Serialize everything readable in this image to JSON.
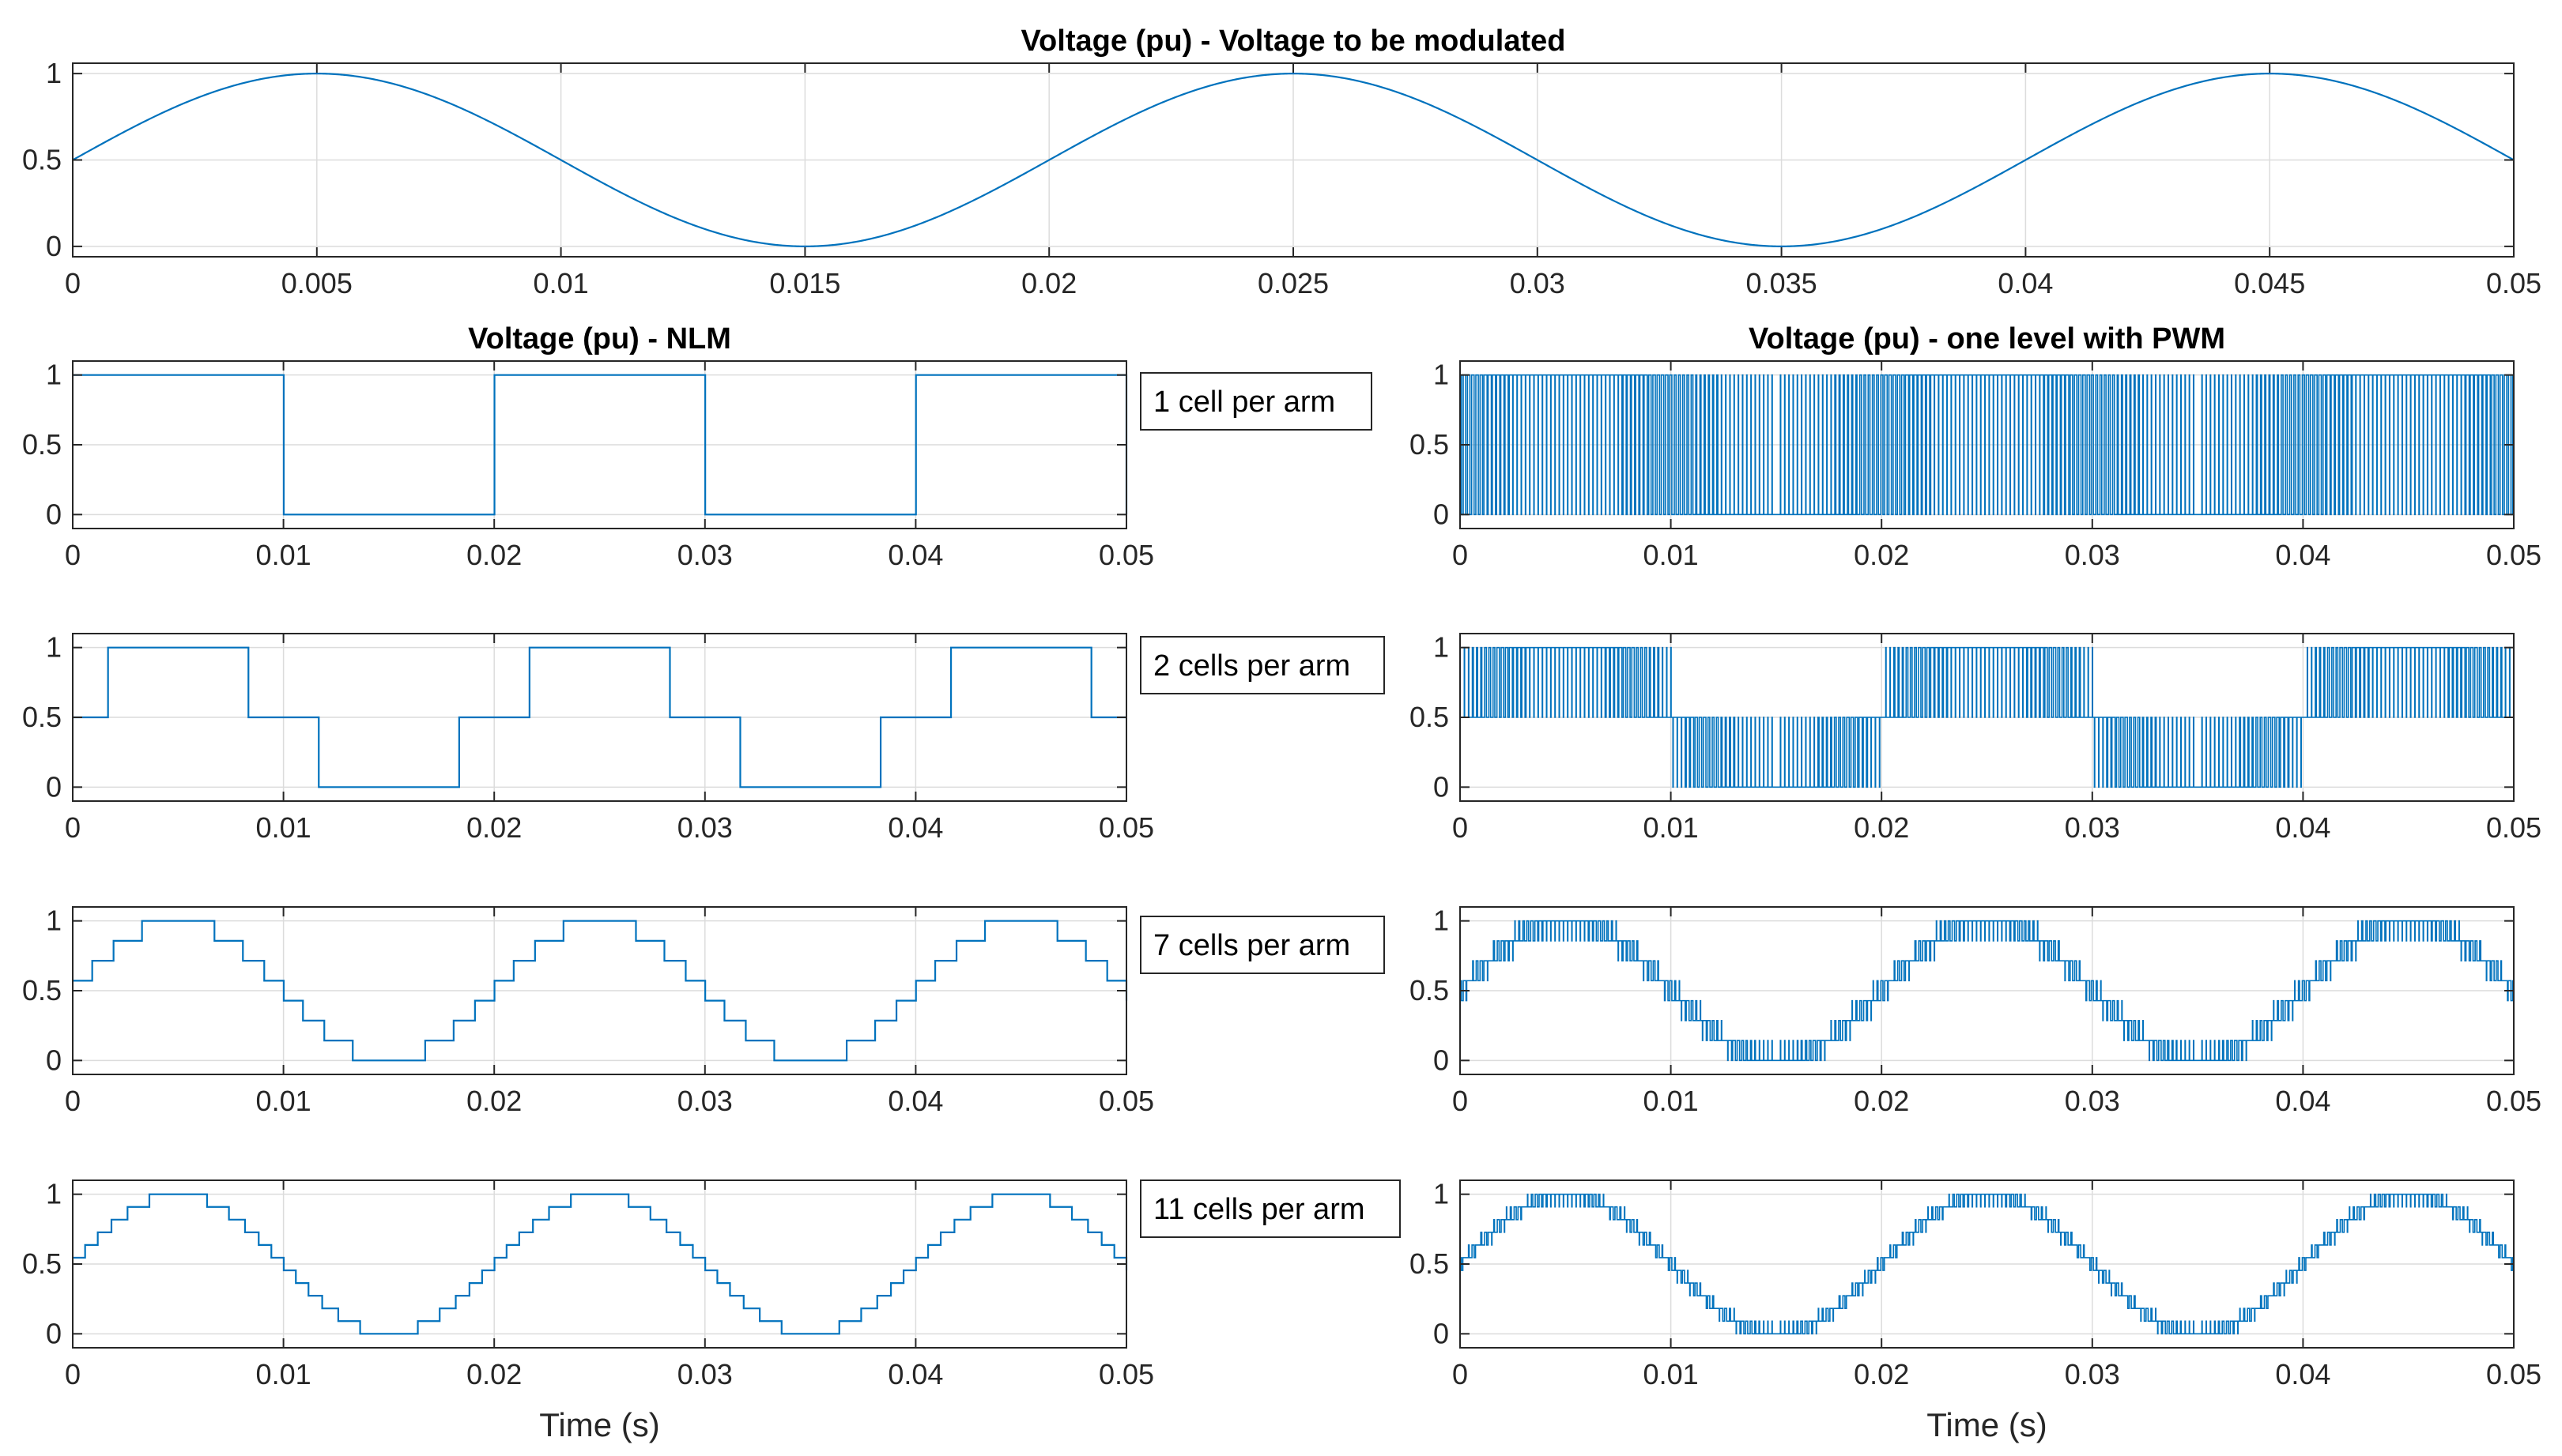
{
  "colors": {
    "series": "#0072BD",
    "grid": "#DCDCDC",
    "axis": "#262626",
    "background": "#FFFFFF"
  },
  "chart_data": [
    {
      "id": "top",
      "type": "line",
      "title": "Voltage (pu) - Voltage to be modulated",
      "xlabel": "",
      "ylabel": "",
      "xlim": [
        0,
        0.05
      ],
      "ylim": [
        -0.06,
        1.06
      ],
      "grid": true,
      "xticks": [
        0,
        0.005,
        0.01,
        0.015,
        0.02,
        0.025,
        0.03,
        0.035,
        0.04,
        0.045,
        0.05
      ],
      "xtick_labels": [
        "0",
        "0.005",
        "0.01",
        "0.015",
        "0.02",
        "0.025",
        "0.03",
        "0.035",
        "0.04",
        "0.045",
        "0.05"
      ],
      "yticks": [
        0,
        0.5,
        1
      ],
      "ytick_labels": [
        "0",
        "0.5",
        "1"
      ],
      "series": [
        {
          "name": "Voltage to be modulated",
          "function": "0.5 + 0.5*sin(2*pi*50*t)",
          "frequency_hz": 50
        }
      ]
    },
    {
      "id": "nlm-1",
      "type": "line",
      "title": "Voltage (pu) - NLM",
      "xlabel": "",
      "annotation": "1 cell per arm",
      "xlim": [
        0,
        0.05
      ],
      "ylim": [
        -0.1,
        1.1
      ],
      "grid": true,
      "xticks": [
        0,
        0.01,
        0.02,
        0.03,
        0.04,
        0.05
      ],
      "xtick_labels": [
        "0",
        "0.01",
        "0.02",
        "0.03",
        "0.04",
        "0.05"
      ],
      "yticks": [
        0,
        0.5,
        1
      ],
      "ytick_labels": [
        "0",
        "0.5",
        "1"
      ],
      "series": [
        {
          "name": "NLM",
          "cells_per_arm": 1,
          "method": "nearest-level",
          "pwm": false
        }
      ]
    },
    {
      "id": "pwm-1",
      "type": "line",
      "title": "Voltage (pu) - one level with PWM",
      "xlabel": "",
      "xlim": [
        0,
        0.05
      ],
      "ylim": [
        -0.1,
        1.1
      ],
      "grid": true,
      "xticks": [
        0,
        0.01,
        0.02,
        0.03,
        0.04,
        0.05
      ],
      "xtick_labels": [
        "0",
        "0.01",
        "0.02",
        "0.03",
        "0.04",
        "0.05"
      ],
      "yticks": [
        0,
        0.5,
        1
      ],
      "ytick_labels": [
        "0",
        "0.5",
        "1"
      ],
      "series": [
        {
          "name": "one level with PWM",
          "cells_per_arm": 1,
          "method": "one-level-pwm",
          "pwm": true
        }
      ]
    },
    {
      "id": "nlm-2",
      "type": "line",
      "title": "",
      "xlabel": "",
      "annotation": "2 cells per arm",
      "xlim": [
        0,
        0.05
      ],
      "ylim": [
        -0.1,
        1.1
      ],
      "grid": true,
      "xticks": [
        0,
        0.01,
        0.02,
        0.03,
        0.04,
        0.05
      ],
      "xtick_labels": [
        "0",
        "0.01",
        "0.02",
        "0.03",
        "0.04",
        "0.05"
      ],
      "yticks": [
        0,
        0.5,
        1
      ],
      "ytick_labels": [
        "0",
        "0.5",
        "1"
      ],
      "series": [
        {
          "name": "NLM",
          "cells_per_arm": 2,
          "method": "nearest-level",
          "pwm": false
        }
      ]
    },
    {
      "id": "pwm-2",
      "type": "line",
      "title": "",
      "xlabel": "",
      "xlim": [
        0,
        0.05
      ],
      "ylim": [
        -0.1,
        1.1
      ],
      "grid": true,
      "xticks": [
        0,
        0.01,
        0.02,
        0.03,
        0.04,
        0.05
      ],
      "xtick_labels": [
        "0",
        "0.01",
        "0.02",
        "0.03",
        "0.04",
        "0.05"
      ],
      "yticks": [
        0,
        0.5,
        1
      ],
      "ytick_labels": [
        "0",
        "0.5",
        "1"
      ],
      "series": [
        {
          "name": "one level with PWM",
          "cells_per_arm": 2,
          "method": "one-level-pwm",
          "pwm": true
        }
      ]
    },
    {
      "id": "nlm-7",
      "type": "line",
      "title": "",
      "xlabel": "",
      "annotation": "7 cells per arm",
      "xlim": [
        0,
        0.05
      ],
      "ylim": [
        -0.1,
        1.1
      ],
      "grid": true,
      "xticks": [
        0,
        0.01,
        0.02,
        0.03,
        0.04,
        0.05
      ],
      "xtick_labels": [
        "0",
        "0.01",
        "0.02",
        "0.03",
        "0.04",
        "0.05"
      ],
      "yticks": [
        0,
        0.5,
        1
      ],
      "ytick_labels": [
        "0",
        "0.5",
        "1"
      ],
      "series": [
        {
          "name": "NLM",
          "cells_per_arm": 7,
          "method": "nearest-level",
          "pwm": false
        }
      ]
    },
    {
      "id": "pwm-7",
      "type": "line",
      "title": "",
      "xlabel": "",
      "xlim": [
        0,
        0.05
      ],
      "ylim": [
        -0.1,
        1.1
      ],
      "grid": true,
      "xticks": [
        0,
        0.01,
        0.02,
        0.03,
        0.04,
        0.05
      ],
      "xtick_labels": [
        "0",
        "0.01",
        "0.02",
        "0.03",
        "0.04",
        "0.05"
      ],
      "yticks": [
        0,
        0.5,
        1
      ],
      "ytick_labels": [
        "0",
        "0.5",
        "1"
      ],
      "series": [
        {
          "name": "one level with PWM",
          "cells_per_arm": 7,
          "method": "one-level-pwm",
          "pwm": true
        }
      ]
    },
    {
      "id": "nlm-11",
      "type": "line",
      "title": "",
      "xlabel": "Time (s)",
      "annotation": "11 cells per arm",
      "xlim": [
        0,
        0.05
      ],
      "ylim": [
        -0.1,
        1.1
      ],
      "grid": true,
      "xticks": [
        0,
        0.01,
        0.02,
        0.03,
        0.04,
        0.05
      ],
      "xtick_labels": [
        "0",
        "0.01",
        "0.02",
        "0.03",
        "0.04",
        "0.05"
      ],
      "yticks": [
        0,
        0.5,
        1
      ],
      "ytick_labels": [
        "0",
        "0.5",
        "1"
      ],
      "series": [
        {
          "name": "NLM",
          "cells_per_arm": 11,
          "method": "nearest-level",
          "pwm": false
        }
      ]
    },
    {
      "id": "pwm-11",
      "type": "line",
      "title": "",
      "xlabel": "Time (s)",
      "xlim": [
        0,
        0.05
      ],
      "ylim": [
        -0.1,
        1.1
      ],
      "grid": true,
      "xticks": [
        0,
        0.01,
        0.02,
        0.03,
        0.04,
        0.05
      ],
      "xtick_labels": [
        "0",
        "0.01",
        "0.02",
        "0.03",
        "0.04",
        "0.05"
      ],
      "yticks": [
        0,
        0.5,
        1
      ],
      "ytick_labels": [
        "0",
        "0.5",
        "1"
      ],
      "series": [
        {
          "name": "one level with PWM",
          "cells_per_arm": 11,
          "method": "one-level-pwm",
          "pwm": true
        }
      ]
    }
  ]
}
